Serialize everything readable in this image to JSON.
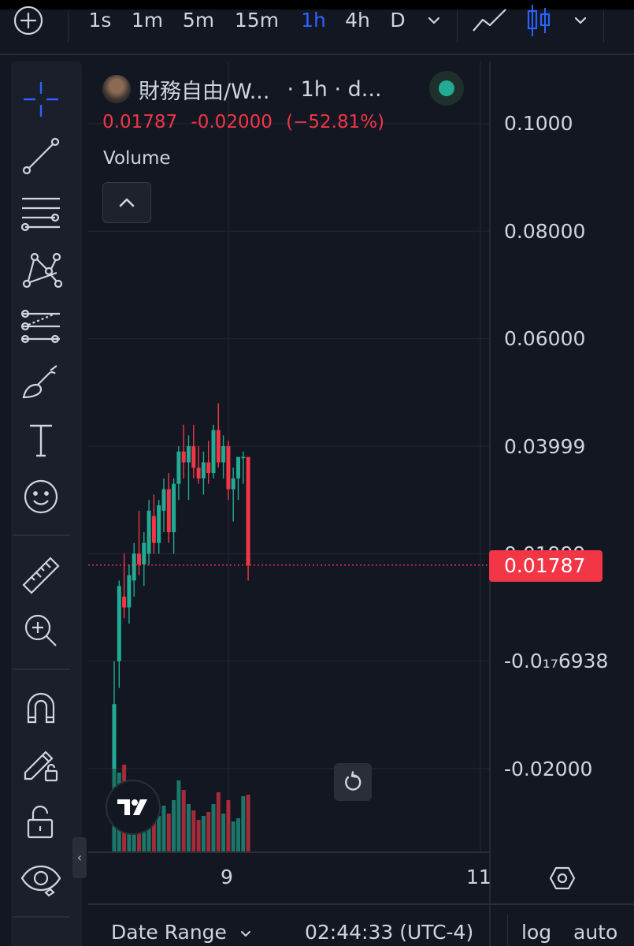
{
  "toolbar": {
    "timeframes": [
      {
        "label": "1s",
        "active": false
      },
      {
        "label": "1m",
        "active": false
      },
      {
        "label": "5m",
        "active": false
      },
      {
        "label": "15m",
        "active": false
      },
      {
        "label": "1h",
        "active": true
      },
      {
        "label": "4h",
        "active": false
      },
      {
        "label": "D",
        "active": false
      }
    ],
    "accent_color": "#2962ff"
  },
  "sidebar": {
    "tools": [
      "crosshair-icon",
      "trend-line-icon",
      "fib-retracement-icon",
      "pattern-icon",
      "prediction-icon",
      "brush-icon",
      "text-icon",
      "emoji-icon",
      "ruler-icon",
      "zoom-in-icon",
      "magnet-icon",
      "lock-drawing-icon",
      "lock-icon",
      "eye-icon"
    ],
    "collapse_glyph": "‹"
  },
  "legend": {
    "symbol": "財務自由/W...",
    "interval": "· 1h · d...",
    "last": "0.01787",
    "change": "-0.02000",
    "change_pct": "(−52.81%)",
    "volume_label": "Volume",
    "status_color": "#22ab94"
  },
  "price_axis": {
    "labels": [
      {
        "text": "0.1000",
        "value": 0.1
      },
      {
        "text": "0.08000",
        "value": 0.08
      },
      {
        "text": "0.06000",
        "value": 0.06
      },
      {
        "text": "0.03999",
        "value": 0.04
      },
      {
        "text": "0.01999",
        "value": 0.02
      },
      {
        "text": "-0.0₁₇6938",
        "value": 0
      },
      {
        "text": "-0.02000",
        "value": -0.02
      }
    ],
    "last_price": "0.01787",
    "last_price_color": "#f23645"
  },
  "time_axis": {
    "labels": [
      "9",
      "11"
    ]
  },
  "bottom_bar": {
    "date_range": "Date Range",
    "clock": "02:44:33 (UTC-4)",
    "log": "log",
    "auto": "auto"
  },
  "colors": {
    "up": "#22ab94",
    "down": "#f23645",
    "background": "#131722",
    "grid": "#1f2330"
  }
}
